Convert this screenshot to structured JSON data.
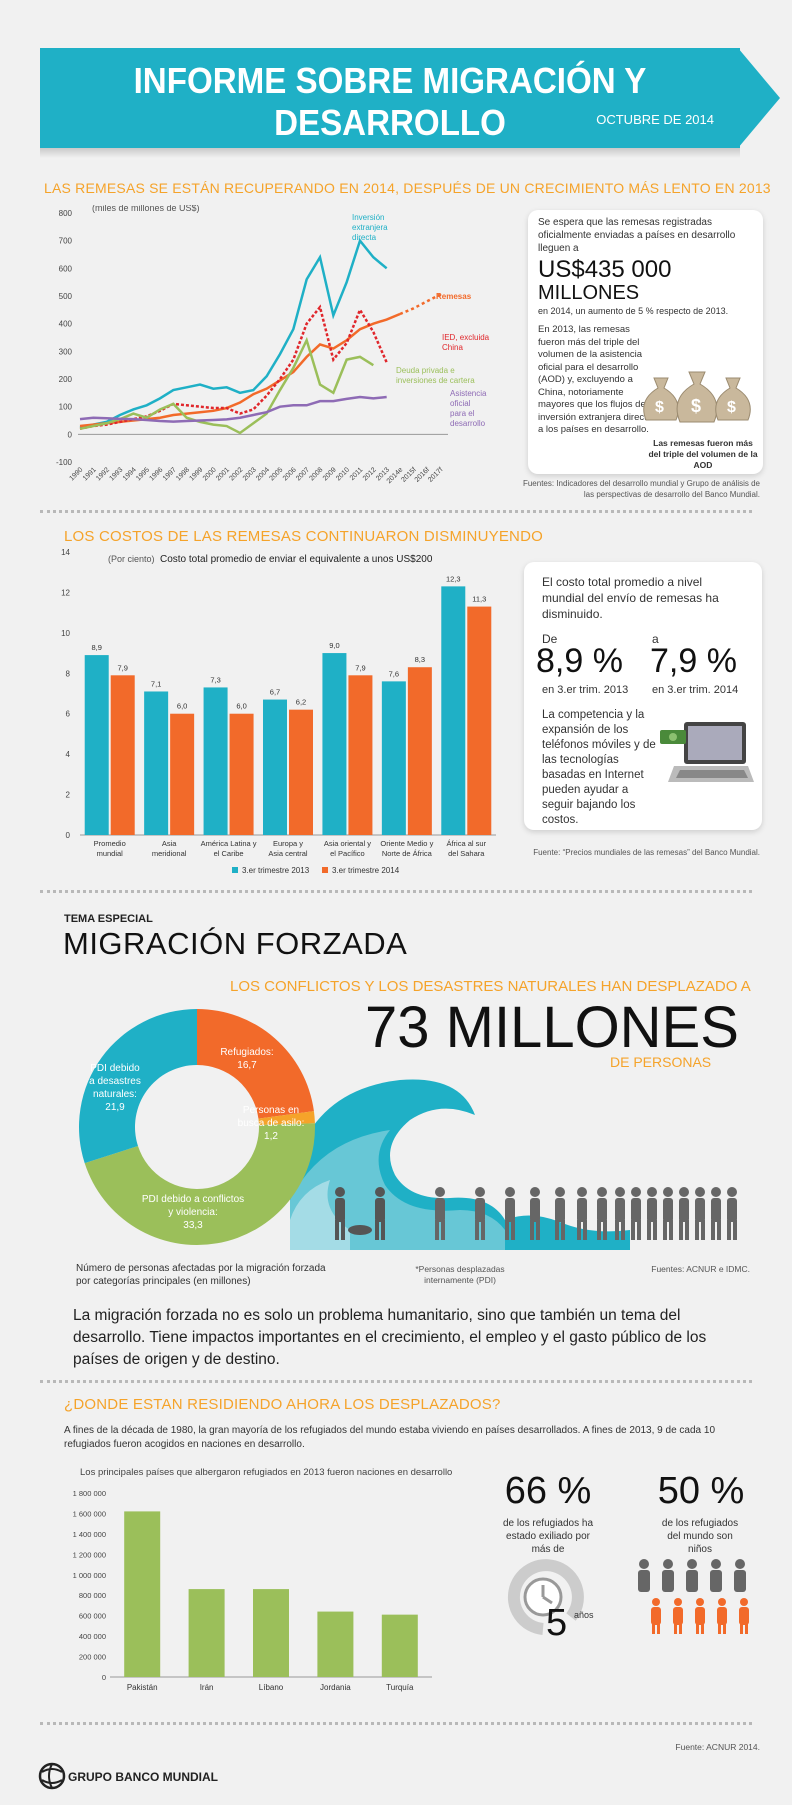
{
  "header": {
    "title": "INFORME SOBRE MIGRACIÓN Y DESARROLLO",
    "date": "OCTUBRE DE 2014"
  },
  "s1": {
    "heading": "LAS REMESAS SE ESTÁN RECUPERANDO EN 2014, DESPUÉS DE UN CRECIMIENTO MÁS LENTO EN 2013",
    "unit": "(miles de millones de US$)",
    "card_intro": "Se espera que las remesas registradas oficialmente enviadas a países en desarrollo lleguen a",
    "card_big1": "US$435 000",
    "card_big2": "MILLONES",
    "card_after": "en 2014, un aumento de 5 % respecto de 2013.",
    "card_p2": "En 2013, las remesas fueron más del triple del volumen de la asistencia oficial para el desarrollo (AOD) y, excluyendo a China, notoriamente mayores que los flujos de inversión extranjera directa a los países en desarrollo.",
    "bag_caption": "Las remesas fueron más del triple del volumen de la AOD",
    "source": "Fuentes: Indicadores del desarrollo mundial y Grupo de análisis de las perspectivas de desarrollo del Banco Mundial."
  },
  "s2": {
    "heading": "LOS COSTOS DE LAS REMESAS CONTINUARON DISMINUYENDO",
    "unit": "(Por ciento)",
    "title": "Costo total promedio de enviar el equivalente a unos US$200",
    "card_intro": "El costo total promedio a nivel mundial del envío de remesas ha disminuido.",
    "from_label": "De",
    "to_label": "a",
    "from_val": "8,9 %",
    "to_val": "7,9 %",
    "from_sub": "en 3.er trim. 2013",
    "to_sub": "en 3.er trim. 2014",
    "card_p2": "La competencia y la expansión de los teléfonos móviles y de las tecnologías basadas en Internet pueden ayudar a seguir bajando los costos.",
    "source": "Fuente: “Precios mundiales de las remesas” del Banco Mundial."
  },
  "s3": {
    "tag": "TEMA ESPECIAL",
    "title": "MIGRACIÓN FORZADA",
    "line1": "LOS CONFLICTOS Y LOS DESASTRES NATURALES HAN DESPLAZADO A",
    "big": "73 MILLONES",
    "line2": "DE PERSONAS",
    "donut_caption": "Número de personas afectadas por la migración forzada por categorías principales (en millones)",
    "pdi_note": "*Personas desplazadas internamente (PDI)",
    "source": "Fuentes: ACNUR e IDMC.",
    "paragraph": "La migración forzada no es solo un problema humanitario, sino que también un tema del desarrollo. Tiene impactos importantes en el crecimiento, el empleo y el gasto público de los países de origen y de destino."
  },
  "s4": {
    "heading": "¿DONDE ESTAN RESIDIENDO AHORA LOS DESPLAZADOS?",
    "paragraph": "A fines de la década de 1980, la gran mayoría de los refugiados del mundo estaba viviendo en países desarrollados. A fines de 2013, 9 de cada 10 refugiados fueron acogidos en naciones en desarrollo.",
    "chart_title": "Los principales países que albergaron refugiados en 2013 fueron naciones en desarrollo",
    "stat1_big": "66 %",
    "stat1_text": "de los refugiados ha estado exiliado por más de",
    "stat1_num": "5",
    "stat1_unit": "años",
    "stat2_big": "50 %",
    "stat2_text": "de los refugiados del mundo son niños",
    "source": "Fuente: ACNUR 2014."
  },
  "footer": {
    "logo_text": "GRUPO BANCO MUNDIAL"
  },
  "colors": {
    "teal": "#1fb0c6",
    "orange": "#f26a2a",
    "green": "#9bbf5a",
    "purple": "#8e6bb5",
    "red": "#e0262b",
    "gold": "#f5a32a"
  },
  "chart_data": [
    {
      "type": "line",
      "ylabel": "(miles de millones de US$)",
      "ylim": [
        -100,
        800
      ],
      "yticks": [
        -100,
        0,
        100,
        200,
        300,
        400,
        500,
        600,
        700,
        800
      ],
      "x": [
        "1990",
        "1991",
        "1992",
        "1993",
        "1994",
        "1995",
        "1996",
        "1997",
        "1998",
        "1999",
        "2000",
        "2001",
        "2002",
        "2003",
        "2004",
        "2005",
        "2006",
        "2007",
        "2008",
        "2009",
        "2010",
        "2011",
        "2012",
        "2013",
        "2014e",
        "2015f",
        "2016f",
        "2017f"
      ],
      "series": [
        {
          "name": "Inversión extranjera directa",
          "color": "#1fb0c6",
          "values": [
            25,
            35,
            45,
            70,
            90,
            105,
            130,
            160,
            170,
            180,
            165,
            170,
            150,
            160,
            210,
            290,
            380,
            560,
            640,
            430,
            550,
            700,
            640,
            600,
            null,
            null,
            null,
            null
          ]
        },
        {
          "name": "Remesas",
          "color": "#f26a2a",
          "values": [
            30,
            35,
            40,
            45,
            50,
            55,
            60,
            70,
            75,
            80,
            85,
            95,
            115,
            145,
            165,
            195,
            225,
            280,
            325,
            310,
            340,
            380,
            400,
            415,
            435,
            455,
            480,
            505
          ]
        },
        {
          "name": "IED, excluida China",
          "color": "#e0262b",
          "values": [
            20,
            30,
            35,
            45,
            55,
            65,
            85,
            110,
            105,
            100,
            95,
            95,
            75,
            90,
            140,
            200,
            270,
            400,
            460,
            270,
            330,
            450,
            370,
            260,
            null,
            null,
            null,
            null
          ]
        },
        {
          "name": "Deuda privada e inversiones de cartera",
          "color": "#9bbf5a",
          "values": [
            20,
            30,
            40,
            55,
            75,
            60,
            90,
            110,
            60,
            45,
            35,
            30,
            5,
            40,
            75,
            160,
            240,
            340,
            180,
            150,
            270,
            280,
            250,
            null,
            null,
            null,
            null,
            null
          ]
        },
        {
          "name": "Asistencia oficial para el desarrollo",
          "color": "#8e6bb5",
          "values": [
            55,
            60,
            58,
            56,
            55,
            52,
            48,
            46,
            48,
            50,
            52,
            54,
            60,
            70,
            80,
            100,
            105,
            105,
            120,
            120,
            128,
            135,
            130,
            135,
            null,
            null,
            null,
            null
          ]
        }
      ]
    },
    {
      "type": "bar",
      "title": "Costo total promedio de enviar el equivalente a unos US$200",
      "ylabel": "(Por ciento)",
      "ylim": [
        0,
        14
      ],
      "yticks": [
        0,
        2,
        4,
        6,
        8,
        10,
        12,
        14
      ],
      "categories": [
        "Promedio mundial",
        "Asia meridional",
        "América Latina y el Caribe",
        "Europa y Asia central",
        "Asia oriental y el Pacífico",
        "Oriente Medio y Norte de África",
        "África al sur del Sahara"
      ],
      "series": [
        {
          "name": "3.er trimestre 2013",
          "color": "#1fb0c6",
          "values": [
            8.9,
            7.1,
            7.3,
            6.7,
            9.0,
            7.6,
            12.3
          ]
        },
        {
          "name": "3.er trimestre 2014",
          "color": "#f26a2a",
          "values": [
            7.9,
            6.0,
            6.0,
            6.2,
            7.9,
            8.3,
            11.3
          ]
        }
      ],
      "labels_2013": [
        "8,9",
        "7,1",
        "7,3",
        "6,7",
        "9,0",
        "7,6",
        "12,3"
      ],
      "labels_2014": [
        "7,9",
        "6,0",
        "6,0",
        "6,2",
        "7,9",
        "8,3",
        "11,3"
      ]
    },
    {
      "type": "pie",
      "slices": [
        {
          "label": "Refugiados:",
          "value": 16.7,
          "value_label": "16,7",
          "color": "#f26a2a"
        },
        {
          "label": "Personas en busca de asilo:",
          "value": 1.2,
          "value_label": "1,2",
          "color": "#f5a32a"
        },
        {
          "label": "PDI debido a conflictos y violencia:",
          "value": 33.3,
          "value_label": "33,3",
          "color": "#9bbf5a"
        },
        {
          "label": "PDI debido a desastres naturales:",
          "value": 21.9,
          "value_label": "21,9",
          "color": "#1fb0c6"
        }
      ]
    },
    {
      "type": "bar",
      "title": "Los principales países que albergaron refugiados en 2013 fueron naciones en desarrollo",
      "ylim": [
        0,
        1800000
      ],
      "yticks": [
        0,
        200000,
        400000,
        600000,
        800000,
        1000000,
        1200000,
        1400000,
        1600000,
        1800000
      ],
      "ytick_labels": [
        "0",
        "200 000",
        "400 000",
        "600 000",
        "800 000",
        "1 000 000",
        "1 200 000",
        "1 400 000",
        "1 600 000",
        "1 800 000"
      ],
      "categories": [
        "Pakistán",
        "Irán",
        "Líbano",
        "Jordania",
        "Turquía"
      ],
      "values": [
        1620000,
        860000,
        860000,
        640000,
        610000
      ],
      "color": "#9bbf5a"
    }
  ]
}
